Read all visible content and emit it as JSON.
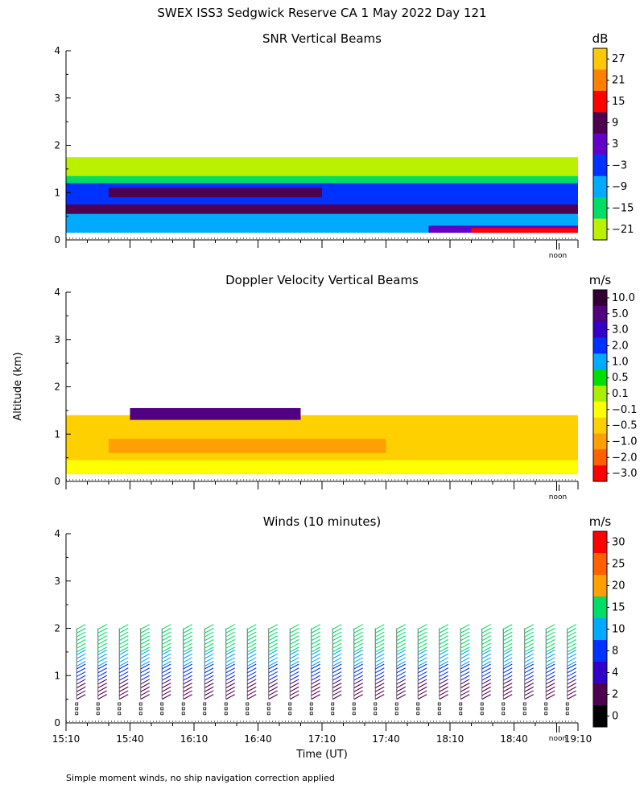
{
  "figure_title": "SWEX ISS3 Sedgwick Reserve CA    1 May 2022 Day 121",
  "shared_ylabel": "Altitude (km)",
  "xlabel": "Time (UT)",
  "noon_label": "noon",
  "footnote": "Simple moment winds, no ship navigation correction applied",
  "chart_data": [
    {
      "type": "heatmap",
      "title": "SNR Vertical Beams",
      "x_range": [
        "15:10",
        "19:10"
      ],
      "ylim": [
        0,
        4
      ],
      "y_ticks": [
        "0",
        "1",
        "2",
        "3",
        "4"
      ],
      "colorbar": {
        "unit": "dB",
        "labels": [
          "27",
          "21",
          "15",
          "9",
          "3",
          "−3",
          "−9",
          "−15",
          "−21"
        ],
        "colors": [
          "#ffc800",
          "#ff8000",
          "#ff0000",
          "#500050",
          "#6400c8",
          "#0032ff",
          "#00aaff",
          "#00dd66",
          "#bbf000"
        ]
      },
      "bands": [
        {
          "y_from": 1.3,
          "y_to": 1.75,
          "label": "-21",
          "x_from": "15:10",
          "x_to": "19:10"
        },
        {
          "y_from": 1.2,
          "y_to": 1.35,
          "label": "-15",
          "x_from": "15:10",
          "x_to": "19:10"
        },
        {
          "y_from": 0.15,
          "y_to": 1.2,
          "label": "-9",
          "x_from": "15:10",
          "x_to": "19:10"
        },
        {
          "y_from": 0.6,
          "y_to": 1.2,
          "label": "-3",
          "x_from": "15:10",
          "x_to": "19:10"
        },
        {
          "y_from": 0.9,
          "y_to": 1.1,
          "label": "9",
          "x_from": "15:30",
          "x_to": "17:10"
        },
        {
          "y_from": 0.55,
          "y_to": 0.75,
          "label": "9",
          "x_from": "15:10",
          "x_to": "19:10"
        },
        {
          "y_from": 0.15,
          "y_to": 0.3,
          "label": "3",
          "x_from": "18:00",
          "x_to": "19:10"
        },
        {
          "y_from": 0.15,
          "y_to": 0.25,
          "label": "15",
          "x_from": "18:20",
          "x_to": "19:10"
        }
      ]
    },
    {
      "type": "heatmap",
      "title": "Doppler Velocity Vertical Beams",
      "x_range": [
        "15:10",
        "19:10"
      ],
      "ylim": [
        0,
        4
      ],
      "y_ticks": [
        "0",
        "1",
        "2",
        "3",
        "4"
      ],
      "colorbar": {
        "unit": "m/s",
        "labels": [
          "10.0",
          "5.0",
          "3.0",
          "2.0",
          "1.0",
          "0.5",
          "0.1",
          "−0.1",
          "−0.5",
          "−1.0",
          "−2.0",
          "−3.0"
        ],
        "colors": [
          "#320032",
          "#500080",
          "#3200c8",
          "#0032ff",
          "#00aaff",
          "#00dd00",
          "#aaee00",
          "#ffff00",
          "#ffd000",
          "#ffa000",
          "#ff6000",
          "#ff0000"
        ]
      },
      "bands": [
        {
          "y_from": 0.15,
          "y_to": 0.45,
          "label": "-0.1",
          "x_from": "15:10",
          "x_to": "19:10"
        },
        {
          "y_from": 0.45,
          "y_to": 1.25,
          "label": "-0.5",
          "x_from": "15:10",
          "x_to": "19:10"
        },
        {
          "y_from": 0.6,
          "y_to": 0.9,
          "label": "-1.0",
          "x_from": "15:30",
          "x_to": "17:40"
        },
        {
          "y_from": 1.25,
          "y_to": 1.4,
          "label": "-0.5",
          "x_from": "15:10",
          "x_to": "19:10"
        },
        {
          "y_from": 1.3,
          "y_to": 1.55,
          "label": "5.0",
          "x_from": "15:40",
          "x_to": "17:00"
        }
      ]
    },
    {
      "type": "scatter",
      "title": "Winds (10 minutes)",
      "x_ticks": [
        "15:10",
        "15:40",
        "16:10",
        "16:40",
        "17:10",
        "17:40",
        "18:10",
        "18:40",
        "19:10"
      ],
      "ylim": [
        0,
        4
      ],
      "y_ticks": [
        "0",
        "1",
        "2",
        "3",
        "4"
      ],
      "colorbar": {
        "unit": "m/s",
        "labels": [
          "30",
          "25",
          "20",
          "15",
          "10",
          "8",
          "4",
          "2",
          "0"
        ],
        "colors": [
          "#ff0000",
          "#ff6000",
          "#ffa000",
          "#00dd66",
          "#00aaff",
          "#0032ff",
          "#3200c8",
          "#500050",
          "#000000"
        ]
      },
      "profiles_times": [
        "15:15",
        "15:25",
        "15:35",
        "15:45",
        "15:55",
        "16:05",
        "16:15",
        "16:25",
        "16:35",
        "16:45",
        "16:55",
        "17:05",
        "17:15",
        "17:25",
        "17:35",
        "17:45",
        "17:55",
        "18:05",
        "18:15",
        "18:25",
        "18:35",
        "18:45",
        "18:55",
        "19:05"
      ],
      "profile_top_km": 2.0,
      "speed_by_height": [
        {
          "y_from": 0.5,
          "y_to": 0.9,
          "speed": 2
        },
        {
          "y_from": 0.9,
          "y_to": 1.2,
          "speed": 8
        },
        {
          "y_from": 1.2,
          "y_to": 1.5,
          "speed": 10
        },
        {
          "y_from": 1.5,
          "y_to": 2.0,
          "speed": 15
        }
      ]
    }
  ]
}
